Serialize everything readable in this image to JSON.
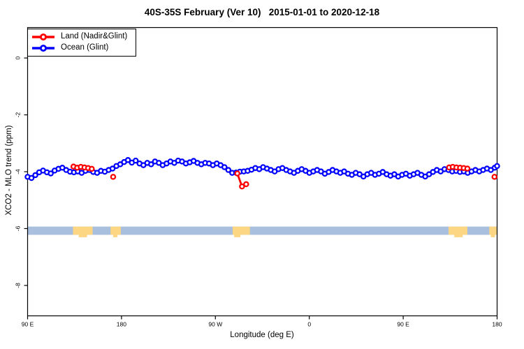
{
  "title": "40S-35S February (Ver 10)   2015-01-01 to 2020-12-18",
  "legend": {
    "items": [
      {
        "label": "Land (Nadir&Glint)",
        "color": "#ff0000"
      },
      {
        "label": "Ocean (Glint)",
        "color": "#0000ff"
      }
    ]
  },
  "chart_data": {
    "type": "line",
    "title": "40S-35S February (Ver 10)   2015-01-01 to 2020-12-18",
    "xlabel": "Longitude (deg E)",
    "ylabel": "XCO2 - MLO trend (ppm)",
    "xlim": [
      90,
      540
    ],
    "ylim": [
      -9.07,
      1.07
    ],
    "grid": false,
    "legend_position": "top-left",
    "x_ticks": [
      {
        "value": 90,
        "label": "90 E"
      },
      {
        "value": 180,
        "label": "180"
      },
      {
        "value": 270,
        "label": "90 W"
      },
      {
        "value": 360,
        "label": "0"
      },
      {
        "value": 450,
        "label": "90 E"
      },
      {
        "value": 540,
        "label": "180"
      }
    ],
    "y_ticks": [
      {
        "value": 0,
        "label": "0"
      },
      {
        "value": -2,
        "label": "-2"
      },
      {
        "value": -4,
        "label": "-4"
      },
      {
        "value": -6,
        "label": "-6"
      },
      {
        "value": -8,
        "label": "-8"
      }
    ],
    "map_band": {
      "ocean_color": "#a9bfde",
      "land_color": "#fcd682",
      "top_ppm": -5.93,
      "bottom_ppm": -6.22,
      "land_patches": [
        {
          "name": "australia",
          "lon": [
            133.5,
            152.3
          ],
          "bump": [
            139,
            147
          ]
        },
        {
          "name": "new-zealand",
          "lon": [
            169.5,
            179.3
          ],
          "bump": [
            172,
            176
          ]
        },
        {
          "name": "south-america",
          "lon": [
            286.5,
            303.1
          ],
          "bump": [
            288,
            294
          ]
        },
        {
          "name": "australia-wrap",
          "lon": [
            493.5,
            511.5
          ],
          "bump": [
            499,
            507
          ]
        },
        {
          "name": "new-zealand-wrap",
          "lon": [
            532.5,
            540.0
          ],
          "bump": [
            534,
            538
          ]
        }
      ]
    },
    "series": [
      {
        "name": "Ocean (Glint)",
        "color": "#0000ff",
        "points": [
          [
            90.0,
            -4.18
          ],
          [
            93.7,
            -4.22
          ],
          [
            97.4,
            -4.12
          ],
          [
            101.1,
            -4.02
          ],
          [
            104.8,
            -3.96
          ],
          [
            108.5,
            -4.02
          ],
          [
            112.2,
            -4.06
          ],
          [
            115.9,
            -3.96
          ],
          [
            119.6,
            -3.9
          ],
          [
            123.3,
            -3.86
          ],
          [
            127.0,
            -3.94
          ],
          [
            130.7,
            -4.0
          ],
          [
            134.4,
            -4.02
          ],
          [
            138.1,
            -3.99
          ],
          [
            141.8,
            -4.04
          ],
          [
            145.5,
            -3.97
          ],
          [
            149.2,
            -3.94
          ],
          [
            152.9,
            -4.01
          ],
          [
            156.6,
            -4.04
          ],
          [
            160.3,
            -3.97
          ],
          [
            164.0,
            -4.0
          ],
          [
            167.7,
            -3.94
          ],
          [
            171.4,
            -3.89
          ],
          [
            175.1,
            -3.8
          ],
          [
            178.8,
            -3.74
          ],
          [
            182.5,
            -3.66
          ],
          [
            186.2,
            -3.59
          ],
          [
            189.9,
            -3.68
          ],
          [
            193.6,
            -3.61
          ],
          [
            197.3,
            -3.71
          ],
          [
            201.0,
            -3.77
          ],
          [
            204.7,
            -3.69
          ],
          [
            208.4,
            -3.74
          ],
          [
            212.1,
            -3.64
          ],
          [
            215.8,
            -3.69
          ],
          [
            219.5,
            -3.77
          ],
          [
            223.2,
            -3.71
          ],
          [
            226.9,
            -3.64
          ],
          [
            230.6,
            -3.69
          ],
          [
            234.3,
            -3.61
          ],
          [
            238.0,
            -3.64
          ],
          [
            241.7,
            -3.71
          ],
          [
            245.4,
            -3.67
          ],
          [
            249.1,
            -3.62
          ],
          [
            252.8,
            -3.69
          ],
          [
            256.5,
            -3.74
          ],
          [
            260.2,
            -3.69
          ],
          [
            263.9,
            -3.71
          ],
          [
            267.6,
            -3.77
          ],
          [
            271.3,
            -3.71
          ],
          [
            275.0,
            -3.77
          ],
          [
            278.7,
            -3.84
          ],
          [
            282.4,
            -3.94
          ],
          [
            286.1,
            -4.04
          ],
          [
            289.8,
            -4.03
          ],
          [
            293.5,
            -4.0
          ],
          [
            297.2,
            -3.99
          ],
          [
            300.9,
            -3.97
          ],
          [
            304.6,
            -3.93
          ],
          [
            308.3,
            -3.87
          ],
          [
            312.0,
            -3.91
          ],
          [
            315.7,
            -3.84
          ],
          [
            319.4,
            -3.89
          ],
          [
            323.1,
            -3.94
          ],
          [
            326.8,
            -3.99
          ],
          [
            330.5,
            -3.91
          ],
          [
            334.2,
            -3.87
          ],
          [
            337.9,
            -3.94
          ],
          [
            341.6,
            -3.99
          ],
          [
            345.3,
            -4.04
          ],
          [
            349.0,
            -3.97
          ],
          [
            352.7,
            -3.91
          ],
          [
            356.4,
            -3.97
          ],
          [
            360.1,
            -4.04
          ],
          [
            363.8,
            -3.99
          ],
          [
            367.5,
            -3.94
          ],
          [
            371.2,
            -3.99
          ],
          [
            374.9,
            -4.07
          ],
          [
            378.6,
            -4.01
          ],
          [
            382.3,
            -3.94
          ],
          [
            386.0,
            -3.99
          ],
          [
            389.7,
            -4.04
          ],
          [
            393.4,
            -3.99
          ],
          [
            397.1,
            -4.07
          ],
          [
            400.8,
            -4.11
          ],
          [
            404.5,
            -4.04
          ],
          [
            408.2,
            -4.09
          ],
          [
            411.9,
            -4.17
          ],
          [
            415.6,
            -4.09
          ],
          [
            419.3,
            -4.04
          ],
          [
            423.0,
            -4.11
          ],
          [
            426.7,
            -4.07
          ],
          [
            430.4,
            -4.01
          ],
          [
            434.1,
            -4.09
          ],
          [
            437.8,
            -4.14
          ],
          [
            441.5,
            -4.09
          ],
          [
            445.2,
            -4.17
          ],
          [
            448.9,
            -4.11
          ],
          [
            452.6,
            -4.07
          ],
          [
            456.3,
            -4.14
          ],
          [
            460.0,
            -4.09
          ],
          [
            463.7,
            -4.04
          ],
          [
            467.4,
            -4.11
          ],
          [
            471.1,
            -4.17
          ],
          [
            474.8,
            -4.09
          ],
          [
            478.5,
            -4.01
          ],
          [
            482.2,
            -3.94
          ],
          [
            485.9,
            -3.99
          ],
          [
            489.6,
            -3.91
          ],
          [
            493.3,
            -3.94
          ],
          [
            497.0,
            -3.99
          ],
          [
            500.7,
            -3.97
          ],
          [
            504.4,
            -4.01
          ],
          [
            508.1,
            -3.99
          ],
          [
            511.8,
            -4.04
          ],
          [
            515.5,
            -3.99
          ],
          [
            519.2,
            -3.94
          ],
          [
            522.9,
            -3.99
          ],
          [
            526.6,
            -3.94
          ],
          [
            530.3,
            -3.89
          ],
          [
            534.0,
            -3.94
          ],
          [
            537.7,
            -3.86
          ],
          [
            540.0,
            -3.8
          ]
        ]
      },
      {
        "name": "Land (Nadir&Glint)",
        "color": "#ff0000",
        "segments": [
          [
            [
              134.0,
              -3.82
            ],
            [
              137.5,
              -3.86
            ],
            [
              141.0,
              -3.83
            ],
            [
              144.5,
              -3.85
            ],
            [
              148.0,
              -3.87
            ],
            [
              151.5,
              -3.9
            ]
          ],
          [
            [
              172.0,
              -4.18
            ]
          ],
          [
            [
              291.0,
              -4.06
            ],
            [
              295.5,
              -4.52
            ],
            [
              299.5,
              -4.44
            ]
          ],
          [
            [
              494.0,
              -3.85
            ],
            [
              497.5,
              -3.83
            ],
            [
              501.0,
              -3.85
            ],
            [
              504.5,
              -3.86
            ],
            [
              508.0,
              -3.87
            ],
            [
              511.5,
              -3.89
            ]
          ],
          [
            [
              537.5,
              -4.18
            ]
          ]
        ]
      }
    ]
  }
}
